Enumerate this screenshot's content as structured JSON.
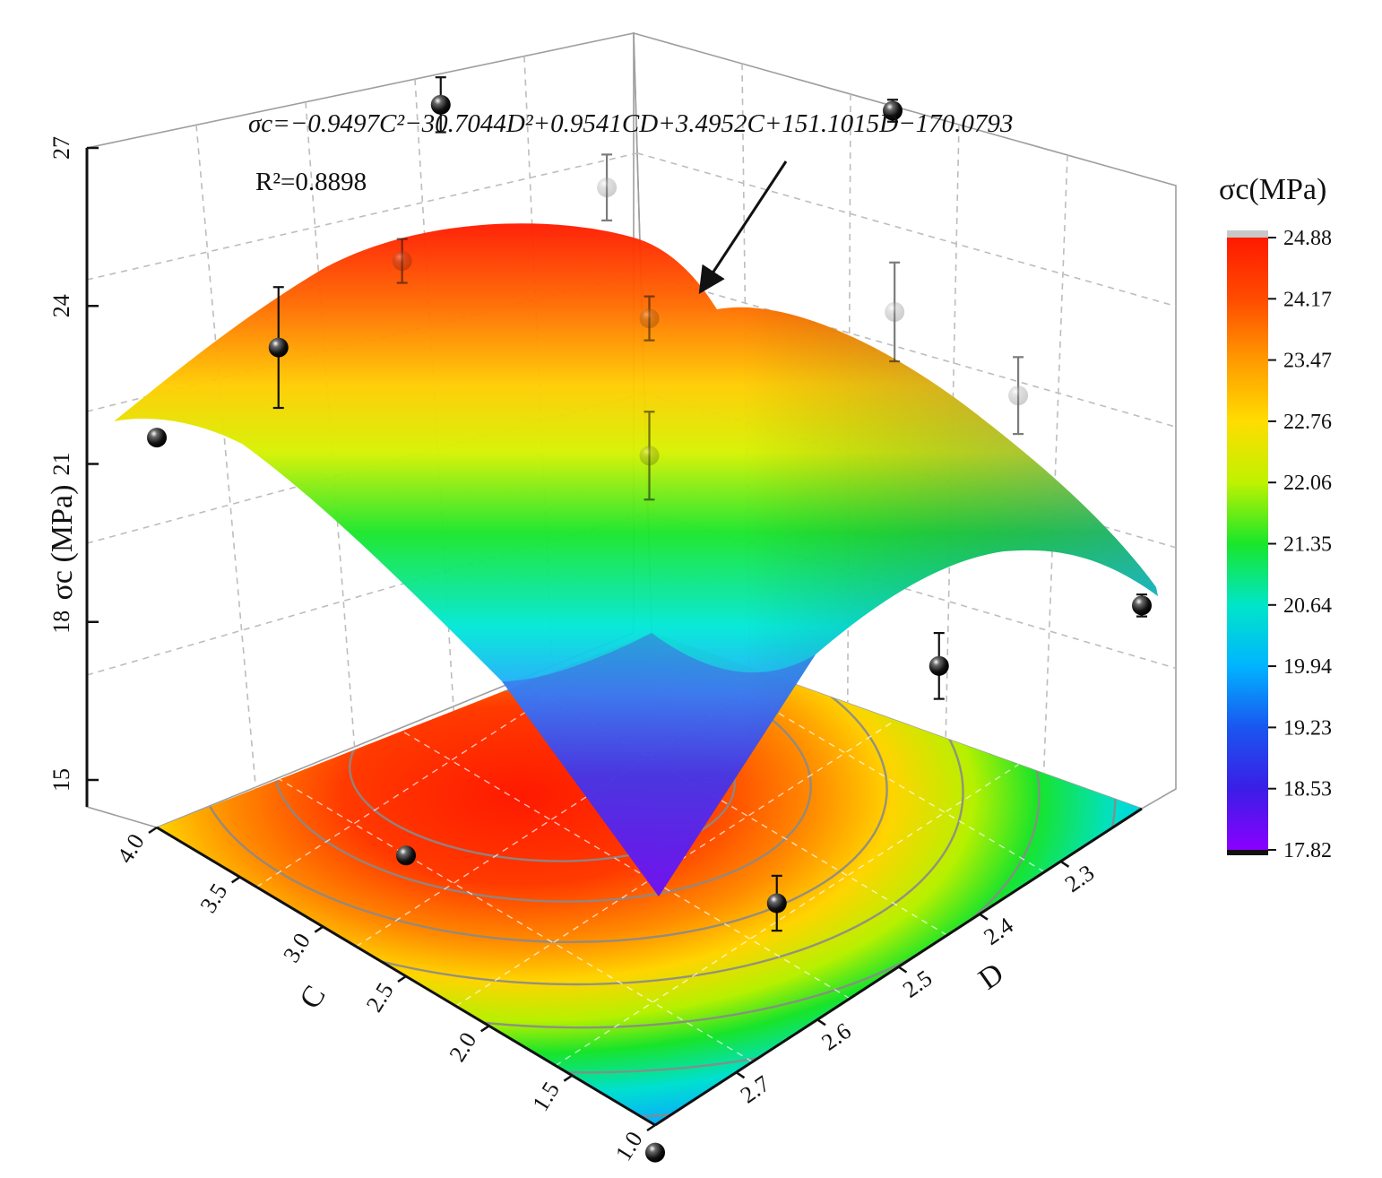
{
  "chart_data": {
    "type": "surface3d",
    "equation_text": "σc=−0.9497C²−30.7044D²+0.9541CD+3.4952C+151.1015D−170.0793",
    "r2_text": "R²=0.8898",
    "y_axis": {
      "label": "σc (MPa)",
      "ticks": [
        "15",
        "18",
        "21",
        "24",
        "27"
      ],
      "range": [
        15,
        27
      ]
    },
    "c_axis": {
      "label": "C",
      "ticks": [
        "1.0",
        "1.5",
        "2.0",
        "2.5",
        "3.0",
        "3.5",
        "4.0"
      ],
      "range": [
        1.0,
        4.0
      ]
    },
    "d_axis": {
      "label": "D",
      "ticks": [
        "2.7",
        "2.6",
        "2.5",
        "2.4",
        "2.3"
      ],
      "range": [
        2.2,
        2.8
      ]
    },
    "colorbar": {
      "title": "σc(MPa)",
      "ticks": [
        "24.88",
        "24.17",
        "23.47",
        "22.76",
        "22.06",
        "21.35",
        "20.64",
        "19.94",
        "19.23",
        "18.53",
        "17.82"
      ],
      "range": [
        17.82,
        24.88
      ]
    },
    "grid": true,
    "legend": "right",
    "points": [
      {
        "C": 4.0,
        "D": 2.8,
        "sigma": 22.1,
        "err": 0.0
      },
      {
        "C": 4.0,
        "D": 2.65,
        "sigma": 22.3,
        "err": 1.1
      },
      {
        "C": 4.0,
        "D": 2.45,
        "sigma": 24.8,
        "err": 0.5
      },
      {
        "C": 4.0,
        "D": 2.2,
        "sigma": 26.1,
        "err": 0.4
      },
      {
        "C": 3.5,
        "D": 2.6,
        "sigma": 24.3,
        "err": 0.4
      },
      {
        "C": 3.0,
        "D": 2.45,
        "sigma": 25.1,
        "err": 0.6
      },
      {
        "C": 2.5,
        "D": 2.5,
        "sigma": 24.1,
        "err": 0.4
      },
      {
        "C": 2.5,
        "D": 2.5,
        "sigma": 21.6,
        "err": 0.8
      },
      {
        "C": 2.5,
        "D": 2.2,
        "sigma": 25.0,
        "err": 0.2
      },
      {
        "C": 2.0,
        "D": 2.3,
        "sigma": 23.2,
        "err": 0.9
      },
      {
        "C": 1.5,
        "D": 2.25,
        "sigma": 22.1,
        "err": 0.7
      },
      {
        "C": 1.0,
        "D": 2.2,
        "sigma": 18.7,
        "err": 0.2
      },
      {
        "C": 1.0,
        "D": 2.45,
        "sigma": 20.0,
        "err": 0.6
      },
      {
        "C": 1.0,
        "D": 2.65,
        "sigma": 17.6,
        "err": 0.5
      },
      {
        "C": 2.5,
        "D": 2.8,
        "sigma": 17.2,
        "err": 0.0
      },
      {
        "C": 1.0,
        "D": 2.8,
        "sigma": 14.5,
        "err": 0.0
      }
    ]
  }
}
